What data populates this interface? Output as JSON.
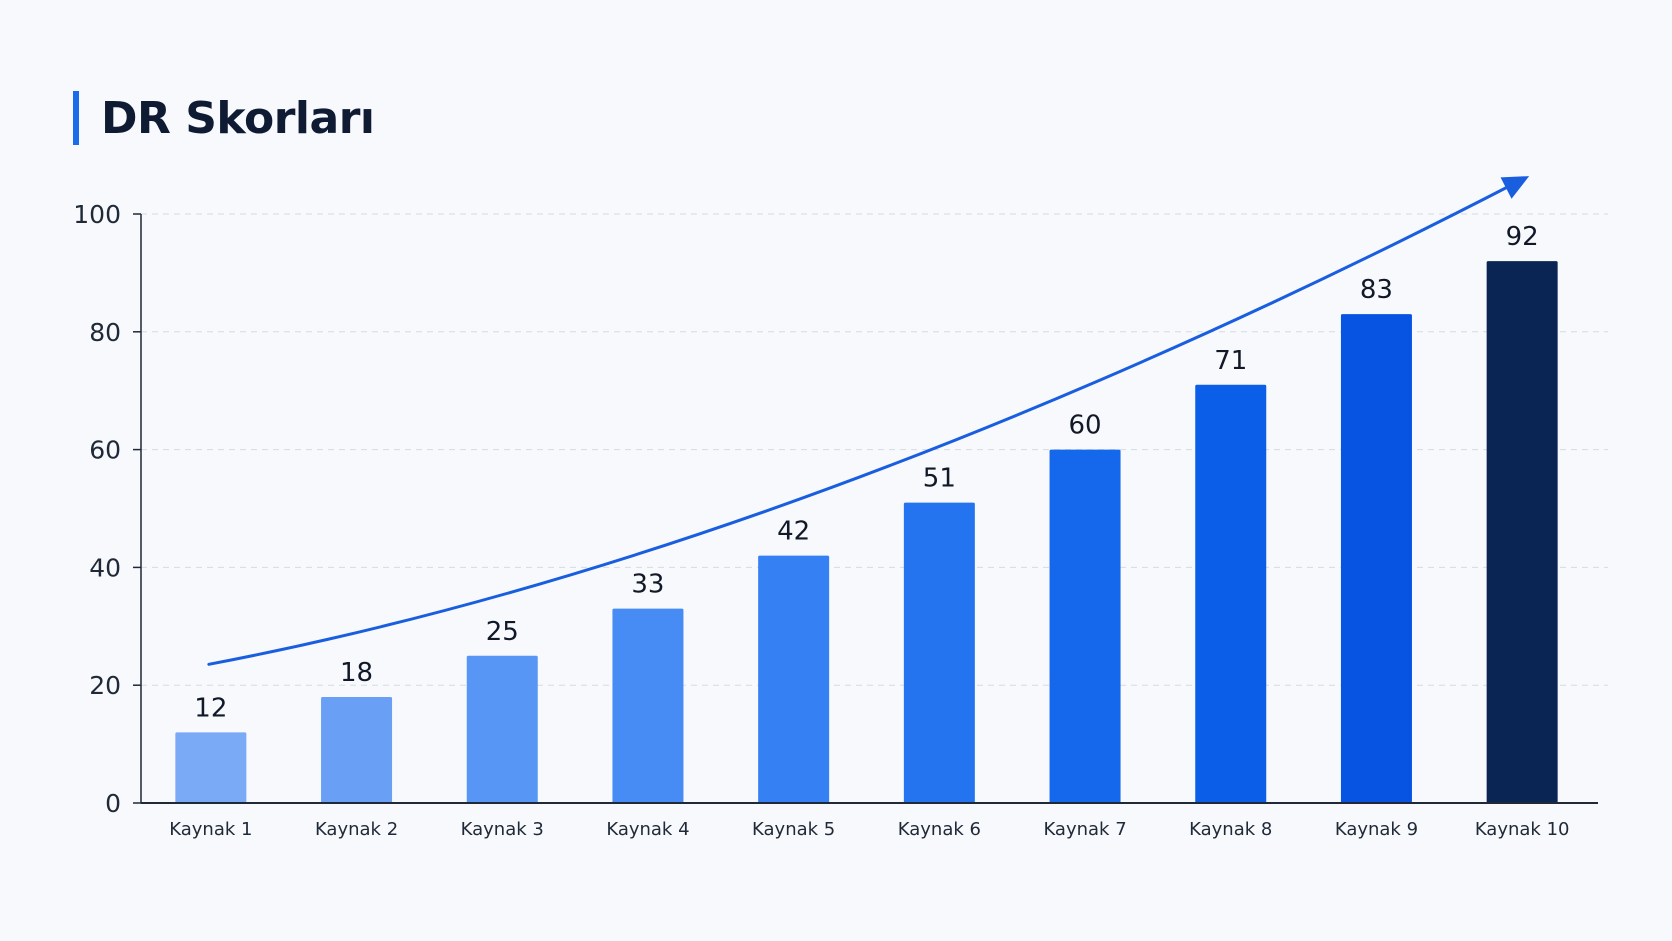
{
  "title": "DR Skorları",
  "colors": {
    "accent": "#1a6dea",
    "trend": "#1a5ee0",
    "grid": "#d5dbe3",
    "axis": "#1f2937"
  },
  "chart_data": {
    "type": "bar",
    "title": "DR Skorları",
    "xlabel": "",
    "ylabel": "",
    "ylim": [
      0,
      100
    ],
    "yticks": [
      0,
      20,
      40,
      60,
      80,
      100
    ],
    "grid": true,
    "categories": [
      "Kaynak 1",
      "Kaynak 2",
      "Kaynak 3",
      "Kaynak 4",
      "Kaynak 5",
      "Kaynak 6",
      "Kaynak 7",
      "Kaynak 8",
      "Kaynak 9",
      "Kaynak 10"
    ],
    "values": [
      12,
      18,
      25,
      33,
      42,
      51,
      60,
      71,
      83,
      92
    ],
    "bar_colors": [
      "#7aaaf6",
      "#69a0f6",
      "#5896f6",
      "#478cf5",
      "#3580f2",
      "#2474f0",
      "#1568ec",
      "#0b5ee8",
      "#0754e2",
      "#0a2453"
    ],
    "trend_arrow": true
  }
}
